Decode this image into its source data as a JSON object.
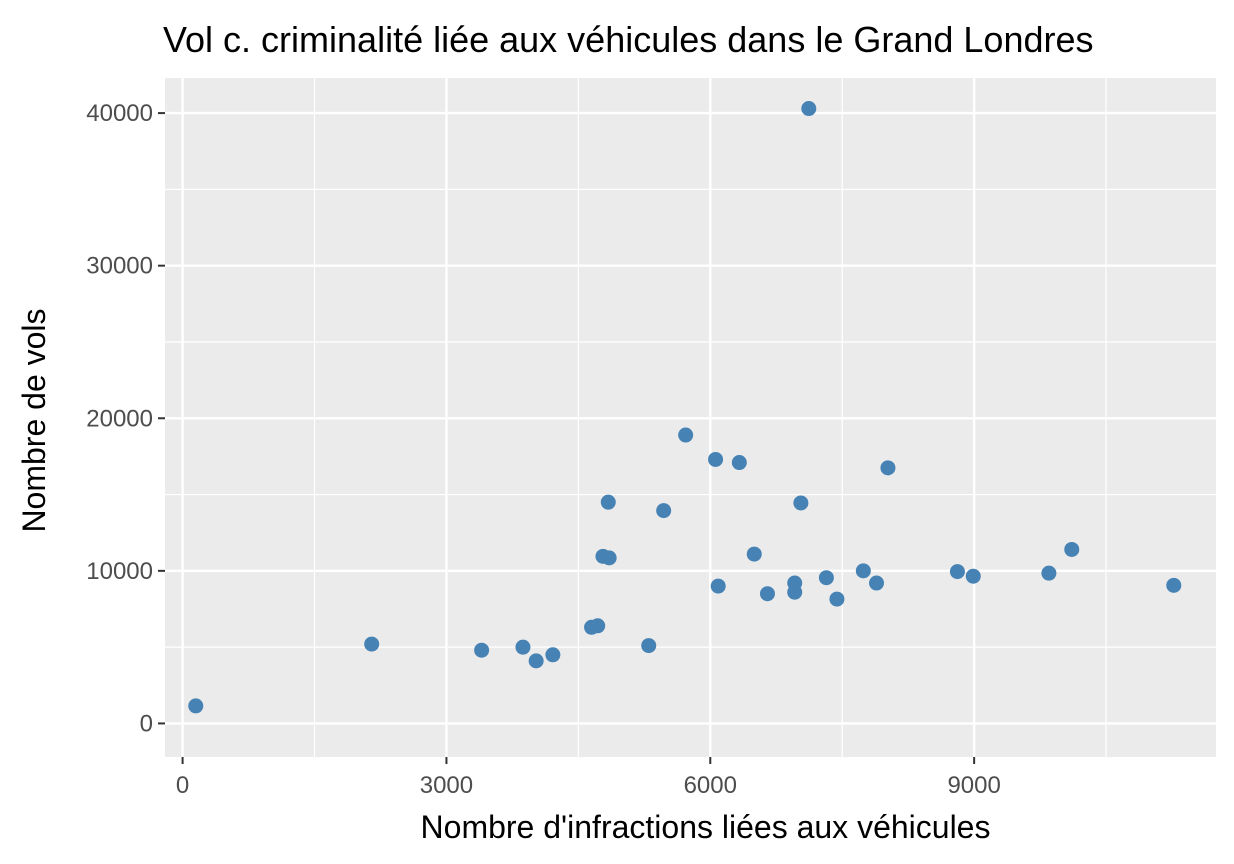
{
  "chart_data": {
    "type": "scatter",
    "title": "Vol c. criminalité liée aux véhicules dans le Grand Londres",
    "xlabel": "Nombre d'infractions liées aux véhicules",
    "ylabel": "Nombre de vols",
    "xlim": [
      -200,
      11750
    ],
    "ylim": [
      -2200,
      42300
    ],
    "xticks": [
      0,
      3000,
      6000,
      9000
    ],
    "yticks": [
      0,
      10000,
      20000,
      30000,
      40000
    ],
    "xtick_labels": [
      "0",
      "3000",
      "6000",
      "9000"
    ],
    "ytick_labels": [
      "0",
      "10000",
      "20000",
      "30000",
      "40000"
    ],
    "grid": true,
    "point_color": "#4682b4",
    "panel_color": "#ebebeb",
    "points": [
      {
        "x": 150,
        "y": 1150
      },
      {
        "x": 2150,
        "y": 5200
      },
      {
        "x": 3400,
        "y": 4800
      },
      {
        "x": 3870,
        "y": 5000
      },
      {
        "x": 4020,
        "y": 4100
      },
      {
        "x": 4210,
        "y": 4500
      },
      {
        "x": 4650,
        "y": 6300
      },
      {
        "x": 4720,
        "y": 6400
      },
      {
        "x": 4780,
        "y": 10950
      },
      {
        "x": 4850,
        "y": 10850
      },
      {
        "x": 4840,
        "y": 14500
      },
      {
        "x": 5300,
        "y": 5100
      },
      {
        "x": 5470,
        "y": 13950
      },
      {
        "x": 5720,
        "y": 18900
      },
      {
        "x": 6060,
        "y": 17300
      },
      {
        "x": 6090,
        "y": 9000
      },
      {
        "x": 6330,
        "y": 17100
      },
      {
        "x": 6500,
        "y": 11100
      },
      {
        "x": 6650,
        "y": 8500
      },
      {
        "x": 6960,
        "y": 9200
      },
      {
        "x": 6960,
        "y": 8600
      },
      {
        "x": 7030,
        "y": 14450
      },
      {
        "x": 7120,
        "y": 40300
      },
      {
        "x": 7320,
        "y": 9550
      },
      {
        "x": 7440,
        "y": 8150
      },
      {
        "x": 7740,
        "y": 10000
      },
      {
        "x": 7890,
        "y": 9200
      },
      {
        "x": 8020,
        "y": 16750
      },
      {
        "x": 8810,
        "y": 9950
      },
      {
        "x": 8990,
        "y": 9650
      },
      {
        "x": 9850,
        "y": 9850
      },
      {
        "x": 10110,
        "y": 11400
      },
      {
        "x": 11270,
        "y": 9050
      }
    ]
  }
}
